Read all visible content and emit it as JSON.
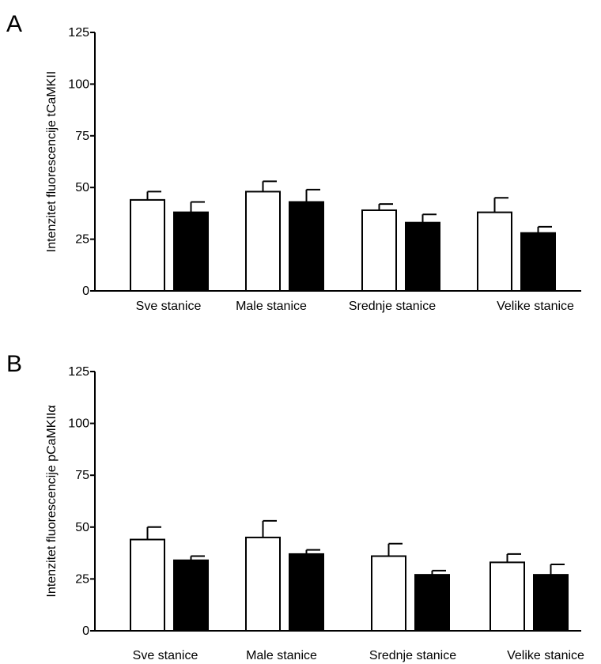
{
  "chart_data": [
    {
      "type": "bar",
      "panel": "A",
      "ylabel": "Intenzitet fluorescencije tCaMKII",
      "ylim": [
        0,
        125
      ],
      "yticks": [
        0,
        25,
        50,
        75,
        100,
        125
      ],
      "categories": [
        "Sve stanice",
        "Male stanice",
        "Srednje stanice",
        "Velike stanice"
      ],
      "series": [
        {
          "color": "#ffffff",
          "values": [
            44,
            48,
            39,
            38
          ],
          "errors": [
            4,
            5,
            3,
            7
          ]
        },
        {
          "color": "#000000",
          "values": [
            38,
            43,
            33,
            28
          ],
          "errors": [
            5,
            6,
            4,
            3
          ]
        }
      ],
      "grid": false
    },
    {
      "type": "bar",
      "panel": "B",
      "ylabel": "Intenzitet fluorescencije pCaMKIIα",
      "ylim": [
        0,
        125
      ],
      "yticks": [
        0,
        25,
        50,
        75,
        100,
        125
      ],
      "categories": [
        "Sve stanice",
        "Male stanice",
        "Srednje stanice",
        "Velike stanice"
      ],
      "series": [
        {
          "color": "#ffffff",
          "values": [
            44,
            45,
            36,
            33
          ],
          "errors": [
            6,
            8,
            6,
            4
          ]
        },
        {
          "color": "#000000",
          "values": [
            34,
            37,
            27,
            27
          ],
          "errors": [
            2,
            2,
            2,
            5
          ]
        }
      ],
      "grid": false
    }
  ]
}
